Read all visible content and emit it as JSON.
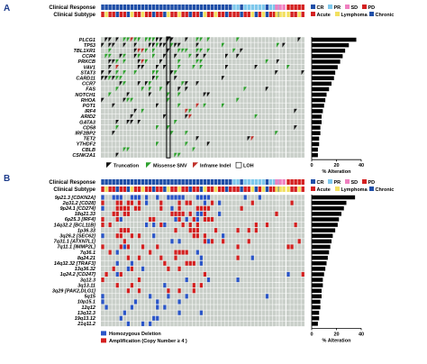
{
  "chart_data": [
    {
      "panel": "A",
      "type": "heatmap",
      "header_rows": [
        "Clinical Response",
        "Clinical Subtype"
      ],
      "response_legend": [
        {
          "label": "CR",
          "color": "#1f4fa8"
        },
        {
          "label": "PR",
          "color": "#7ec8ec"
        },
        {
          "label": "SD",
          "color": "#f080c0"
        },
        {
          "label": "PD",
          "color": "#d42020"
        }
      ],
      "subtype_legend": [
        {
          "label": "Acute",
          "color": "#d42020"
        },
        {
          "label": "Lymphoma",
          "color": "#f2e060"
        },
        {
          "label": "Chronic",
          "color": "#1f4fa8"
        }
      ],
      "genes": [
        "PLCG1",
        "TP53",
        "TBL1XR1",
        "CCR4",
        "PRKCB",
        "VAV1",
        "STAT3",
        "CARD11",
        "CCR7",
        "FAS",
        "NOTCH1",
        "RHOA",
        "POT1",
        "IRF4",
        "ARID2",
        "GATA3",
        "CD58",
        "IRF2BP2",
        "TET2",
        "YTHDF2",
        "CBLB",
        "CSNK2A1"
      ],
      "alteration_pct": [
        36,
        30,
        27,
        25,
        23,
        21,
        19,
        18,
        16,
        14,
        12,
        11,
        10,
        9,
        8,
        8,
        7,
        7,
        6,
        6,
        5,
        5
      ],
      "x_ticks": [
        0,
        20,
        40
      ],
      "xlabel": "% Alteration",
      "mutation_legend": [
        {
          "label": "Truncation",
          "color": "#111111"
        },
        {
          "label": "Missense SNV",
          "color": "#2da02d"
        },
        {
          "label": "Inframe Indel",
          "color": "#c0302a"
        },
        {
          "label": "LOH",
          "color": "#ffffff"
        }
      ]
    },
    {
      "panel": "B",
      "type": "heatmap",
      "header_rows": [
        "Clinical Response",
        "Clinical Subtype"
      ],
      "response_legend": [
        {
          "label": "CR",
          "color": "#1f4fa8"
        },
        {
          "label": "PR",
          "color": "#7ec8ec"
        },
        {
          "label": "SD",
          "color": "#f080c0"
        },
        {
          "label": "PD",
          "color": "#d42020"
        }
      ],
      "subtype_legend": [
        {
          "label": "Acute",
          "color": "#d42020"
        },
        {
          "label": "Lymphoma",
          "color": "#f2e060"
        },
        {
          "label": "Chronic",
          "color": "#1f4fa8"
        }
      ],
      "regions": [
        "9p21.3 [CDKN2A]",
        "2q31.2 [CD28]",
        "9p24.1 [CD274]",
        "18q21.33",
        "6p25.3 [IRF4]",
        "14q32.2 [BCL11B]",
        "1p36.33",
        "3q26.2 [SEC62]",
        "7q31.1 [ATXN7L1]",
        "7q11.1 [IMMP2L]",
        "7q36.1",
        "8q24.21",
        "14q32.32 [TRAF3]",
        "13q36.32",
        "1q24.2 [CD247]",
        "3q12.3",
        "3q13.11",
        "3q29 [PAK2,DLG1]",
        "5q15",
        "10p15.1",
        "12q12",
        "13q32.3",
        "19q13.12",
        "21q11.2"
      ],
      "alteration_pct": [
        35,
        28,
        26,
        24,
        22,
        21,
        19,
        17,
        16,
        15,
        14,
        13,
        12,
        11,
        10,
        9,
        9,
        8,
        8,
        7,
        7,
        6,
        6,
        5
      ],
      "x_ticks": [
        0,
        20,
        40
      ],
      "xlabel": "% Alteration",
      "cnv_legend": [
        {
          "label": "Homozygous Deletion",
          "color": "#2a55c8"
        },
        {
          "label": "Amplification (Copy Number ≥ 4 )",
          "color": "#d42020"
        }
      ]
    }
  ]
}
